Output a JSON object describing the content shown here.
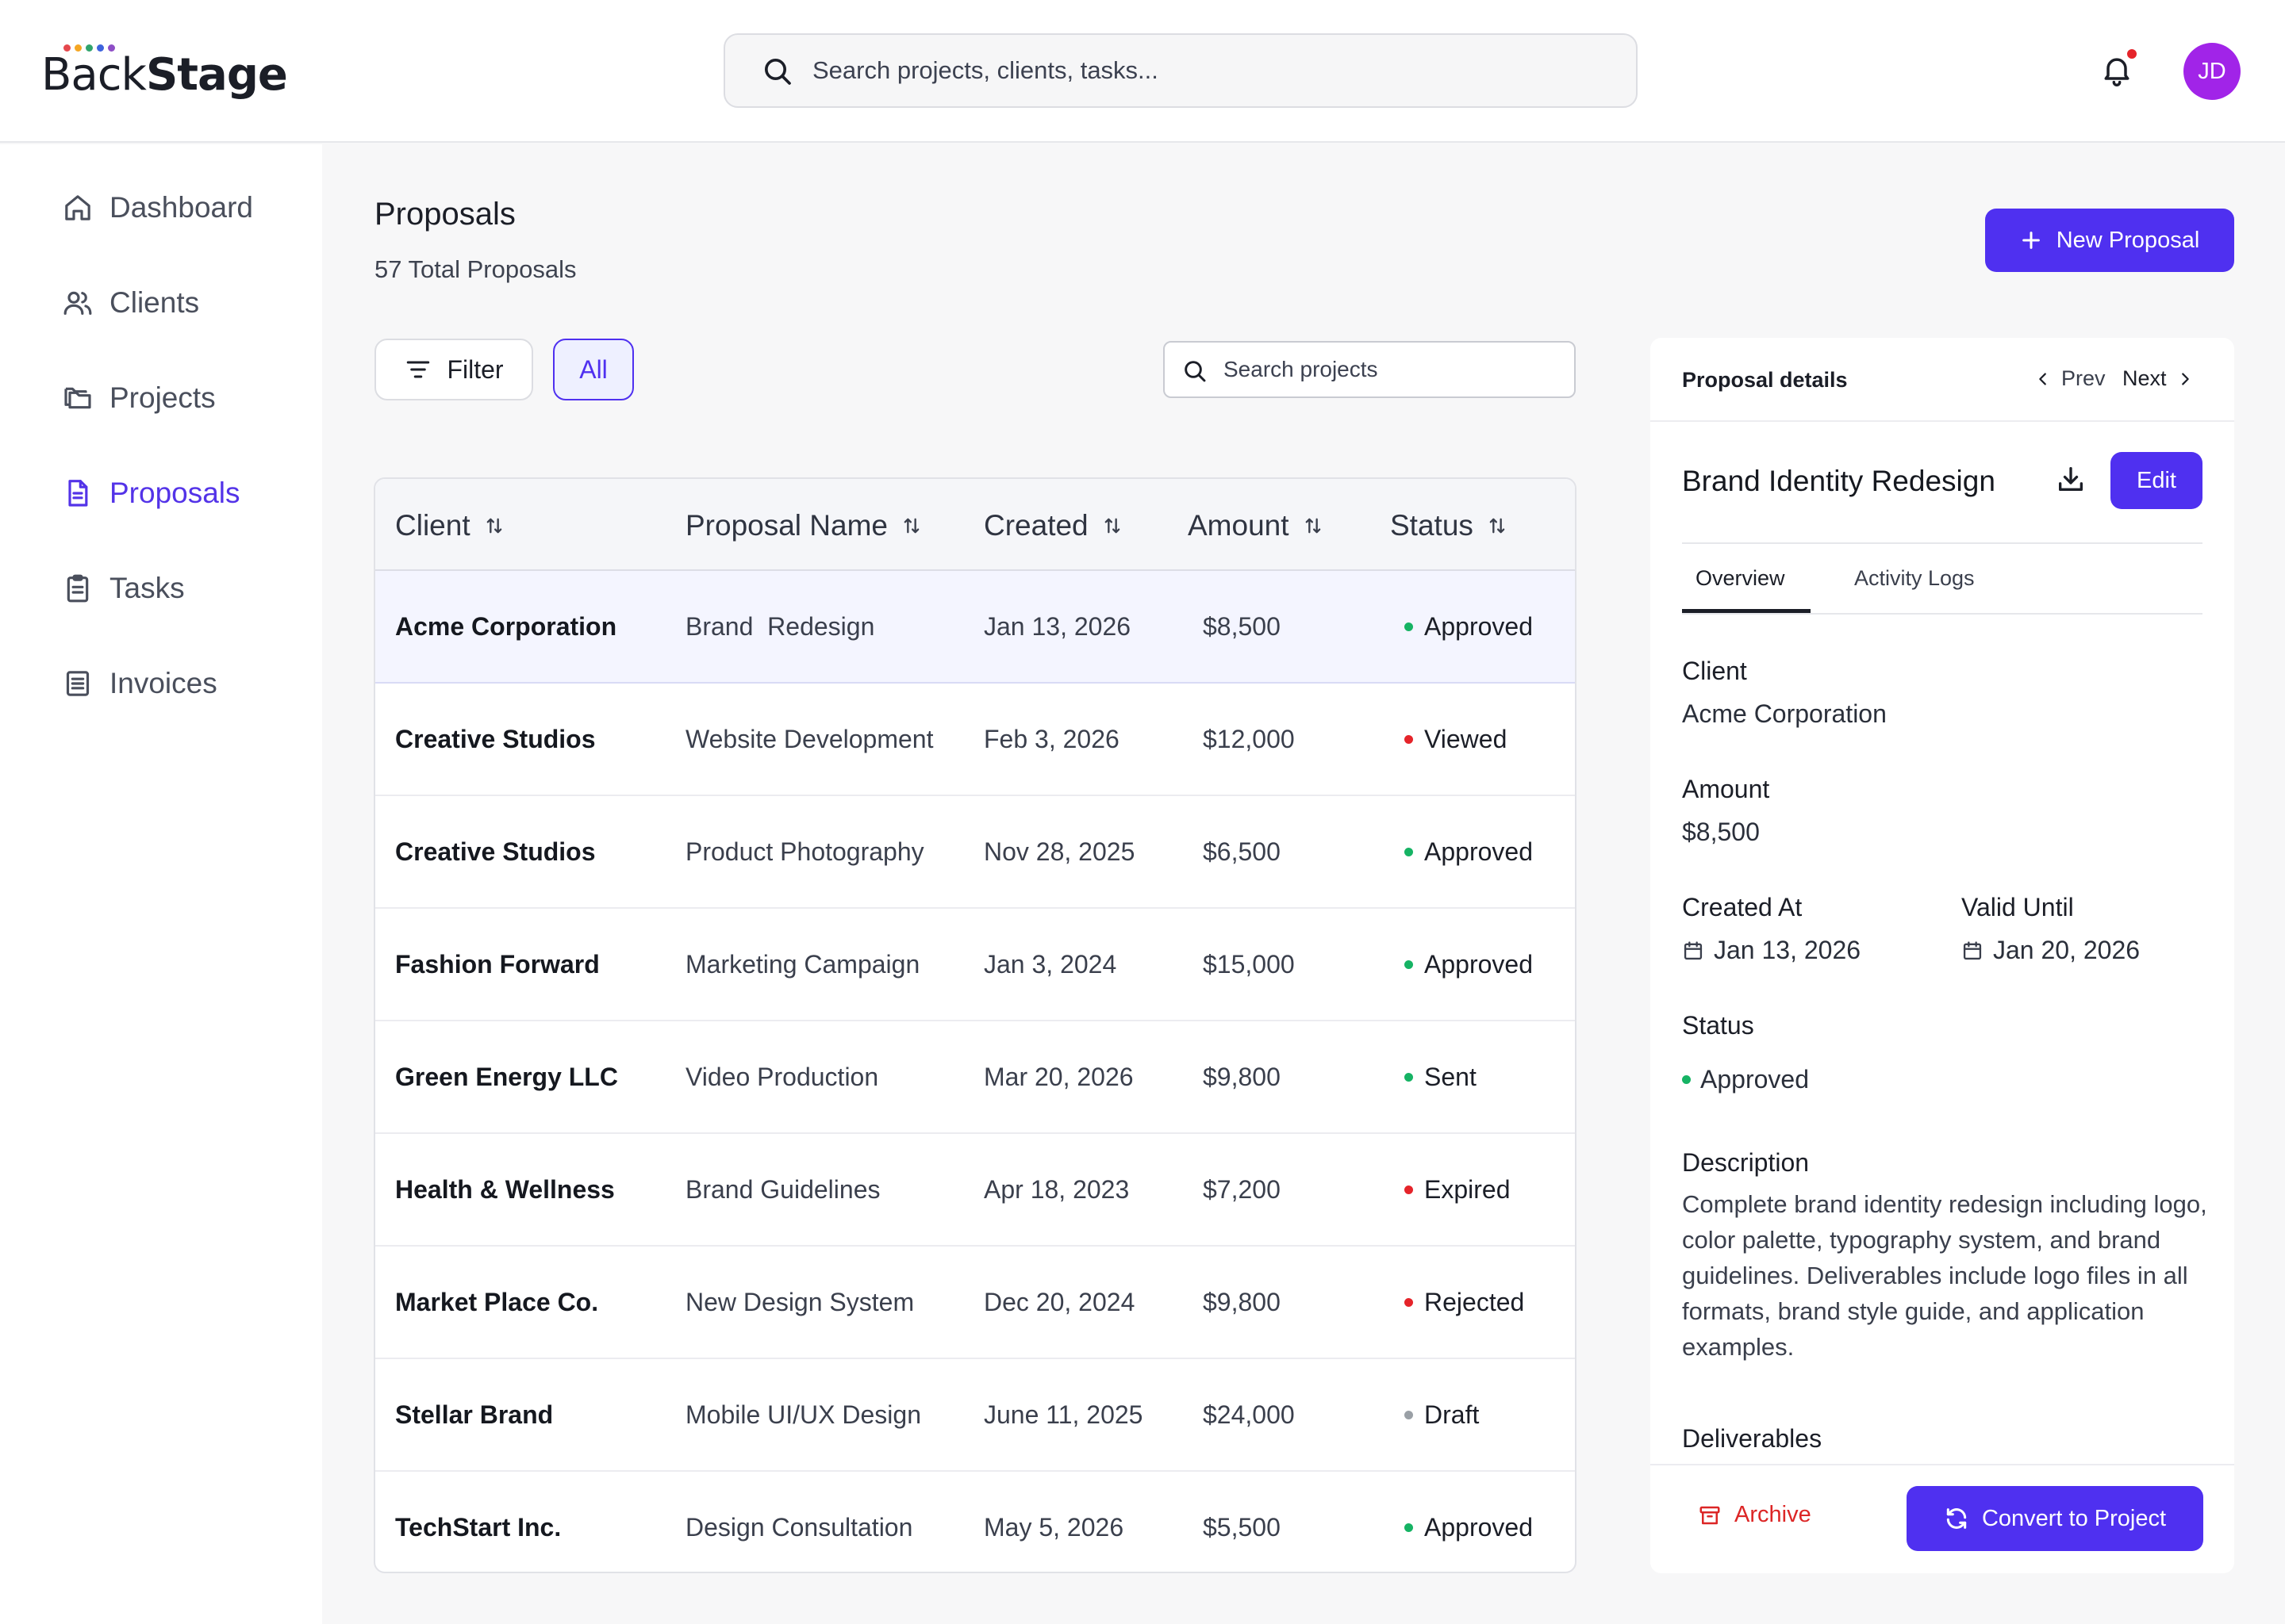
{
  "app": {
    "logo": {
      "part1": "Back",
      "part2": "Stage",
      "dot_colors": [
        "#e5484d",
        "#f5a623",
        "#30a46c",
        "#3e63dd",
        "#8e4ec6"
      ]
    },
    "search": {
      "placeholder": "Search projects, clients, tasks..."
    },
    "user": {
      "initials": "JD",
      "avatar_color": "#a124e8"
    }
  },
  "colors": {
    "accent": "#4f30f0",
    "approved": "#16b364",
    "negative": "#e5242a",
    "draft": "#9aa0a6"
  },
  "sidebar": {
    "items": [
      {
        "label": "Dashboard",
        "icon": "home-icon",
        "active": false
      },
      {
        "label": "Clients",
        "icon": "users-icon",
        "active": false
      },
      {
        "label": "Projects",
        "icon": "folders-icon",
        "active": false
      },
      {
        "label": "Proposals",
        "icon": "file-icon",
        "active": true
      },
      {
        "label": "Tasks",
        "icon": "clipboard-icon",
        "active": false
      },
      {
        "label": "Invoices",
        "icon": "receipt-icon",
        "active": false
      }
    ]
  },
  "main": {
    "title": "Proposals",
    "subtitle": "57 Total Proposals",
    "new_button": "New Proposal",
    "filter_label": "Filter",
    "all_label": "All",
    "table_search_placeholder": "Search projects"
  },
  "table": {
    "columns": [
      "Client",
      "Proposal Name",
      "Created",
      "Amount",
      "Status"
    ],
    "rows": [
      {
        "client": "Acme Corporation",
        "name": "Brand  Redesign",
        "created": "Jan 13, 2026",
        "amount": "$8,500",
        "status": "Approved",
        "status_color": "#16b364"
      },
      {
        "client": "Creative Studios",
        "name": "Website Development",
        "created": "Feb 3, 2026",
        "amount": "$12,000",
        "status": "Viewed",
        "status_color": "#e5242a"
      },
      {
        "client": "Creative Studios",
        "name": "Product Photography",
        "created": "Nov 28, 2025",
        "amount": "$6,500",
        "status": "Approved",
        "status_color": "#16b364"
      },
      {
        "client": "Fashion Forward",
        "name": "Marketing Campaign",
        "created": "Jan 3, 2024",
        "amount": "$15,000",
        "status": "Approved",
        "status_color": "#16b364"
      },
      {
        "client": "Green Energy LLC",
        "name": "Video Production",
        "created": "Mar 20, 2026",
        "amount": "$9,800",
        "status": "Sent",
        "status_color": "#16b364"
      },
      {
        "client": "Health & Wellness",
        "name": "Brand Guidelines",
        "created": "Apr 18, 2023",
        "amount": "$7,200",
        "status": "Expired",
        "status_color": "#e5242a"
      },
      {
        "client": "Market Place Co.",
        "name": "New Design System",
        "created": "Dec 20, 2024",
        "amount": "$9,800",
        "status": "Rejected",
        "status_color": "#e5242a"
      },
      {
        "client": "Stellar Brand",
        "name": "Mobile UI/UX Design",
        "created": "June 11, 2025",
        "amount": "$24,000",
        "status": "Draft",
        "status_color": "#9aa0a6"
      },
      {
        "client": "TechStart Inc.",
        "name": "Design Consultation",
        "created": "May 5, 2026",
        "amount": "$5,500",
        "status": "Approved",
        "status_color": "#16b364"
      }
    ]
  },
  "details": {
    "header": "Proposal details",
    "prev": "Prev",
    "next": "Next",
    "title": "Brand Identity Redesign",
    "edit": "Edit",
    "tabs": [
      "Overview",
      "Activity Logs"
    ],
    "client_label": "Client",
    "client": "Acme Corporation",
    "amount_label": "Amount",
    "amount": "$8,500",
    "created_label": "Created At",
    "created": "Jan 13, 2026",
    "valid_label": "Valid Until",
    "valid": "Jan 20, 2026",
    "status_label": "Status",
    "status": "Approved",
    "description_label": "Description",
    "description": "Complete brand identity redesign including logo, color palette, typography system, and brand guidelines. Deliverables include logo files in all formats, brand style guide, and application examples.",
    "deliverables_label": "Deliverables",
    "archive": "Archive",
    "convert": "Convert to Project"
  }
}
